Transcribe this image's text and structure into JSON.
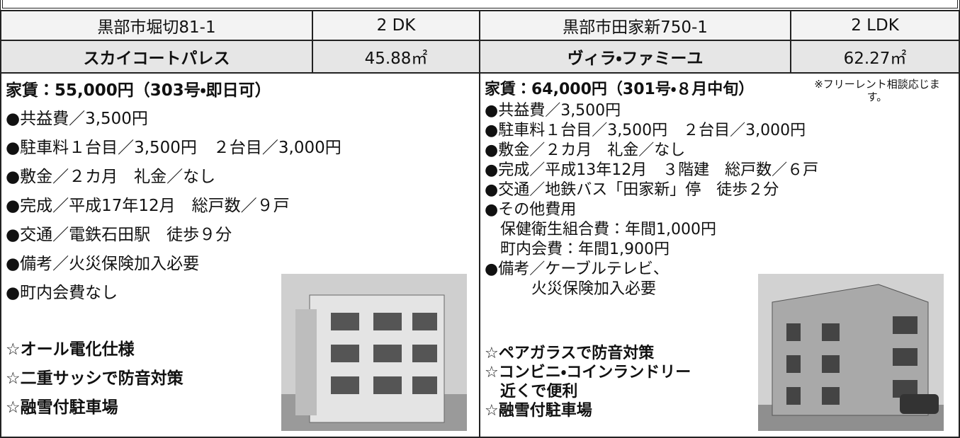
{
  "listings": [
    {
      "address": "黒部市堀切81-1",
      "layout": "2 DK",
      "name": "スカイコートパレス",
      "area": "45.88㎡",
      "rent": "家賃：55,000円（303号・即日可）",
      "details": [
        "●共益費／3,500円",
        "●駐車料１台目／3,500円　２台目／3,000円",
        "●敷金／２カ月　礼金／なし",
        "●完成／平成17年12月　総戸数／９戸",
        "●交通／電鉄石田駅　徒歩９分",
        "●備考／火災保険加入必要",
        "●町内会費なし"
      ],
      "features": [
        "☆オール電化仕様",
        "☆二重サッシで防音対策",
        "☆融雪付駐車場"
      ]
    },
    {
      "address": "黒部市田家新750-1",
      "layout": "2 LDK",
      "name": "ヴィラ・ファミーユ",
      "area": "62.27㎡",
      "rent": "家賃：64,000円（301号・８月中旬）",
      "note": "※フリーレント相談応じます。",
      "details": [
        "●共益費／3,500円",
        "●駐車料１台目／3,500円　２台目／3,000円",
        "●敷金／２カ月　礼金／なし",
        "●完成／平成13年12月　３階建　総戸数／６戸",
        "●交通／地鉄バス「田家新」停　徒歩２分",
        "●その他費用",
        "　保健衛生組合費：年間1,000円",
        "　町内会費：年間1,900円",
        "●備考／ケーブルテレビ、",
        "　　　火災保険加入必要"
      ],
      "features": [
        "☆ペアガラスで防音対策",
        "☆コンビニ・コインランドリー",
        "　近くで便利",
        "☆融雪付駐車場"
      ]
    }
  ]
}
